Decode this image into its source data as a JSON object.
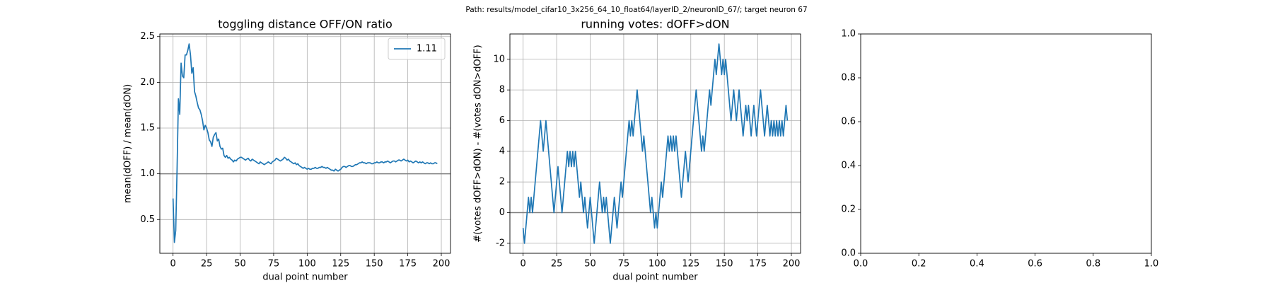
{
  "title": "Path: results/model_cifar10_3x256_64_10_float64/layerID_2/neuronID_67/; target neuron 67",
  "chart_data": [
    {
      "type": "line",
      "title": "toggling distance OFF/ON ratio",
      "xlabel": "dual point number",
      "ylabel": "mean(dOFF) / mean(dON)",
      "x": [
        0,
        1,
        2,
        3,
        4,
        5,
        6,
        7,
        8,
        9,
        10,
        11,
        12,
        13,
        14,
        15,
        16,
        17,
        18,
        19,
        20,
        21,
        22,
        23,
        24,
        25,
        26,
        27,
        28,
        29,
        30,
        31,
        32,
        33,
        34,
        35,
        36,
        37,
        38,
        39,
        40,
        41,
        42,
        43,
        44,
        45,
        46,
        47,
        48,
        49,
        50,
        51,
        52,
        53,
        54,
        55,
        56,
        57,
        58,
        59,
        60,
        61,
        62,
        63,
        64,
        65,
        66,
        67,
        68,
        69,
        70,
        71,
        72,
        73,
        74,
        75,
        76,
        77,
        78,
        79,
        80,
        81,
        82,
        83,
        84,
        85,
        86,
        87,
        88,
        89,
        90,
        91,
        92,
        93,
        94,
        95,
        96,
        97,
        98,
        99,
        100,
        101,
        102,
        103,
        104,
        105,
        106,
        107,
        108,
        109,
        110,
        111,
        112,
        113,
        114,
        115,
        116,
        117,
        118,
        119,
        120,
        121,
        122,
        123,
        124,
        125,
        126,
        127,
        128,
        129,
        130,
        131,
        132,
        133,
        134,
        135,
        136,
        137,
        138,
        139,
        140,
        141,
        142,
        143,
        144,
        145,
        146,
        147,
        148,
        149,
        150,
        151,
        152,
        153,
        154,
        155,
        156,
        157,
        158,
        159,
        160,
        161,
        162,
        163,
        164,
        165,
        166,
        167,
        168,
        169,
        170,
        171,
        172,
        173,
        174,
        175,
        176,
        177,
        178,
        179,
        180,
        181,
        182,
        183,
        184,
        185,
        186,
        187,
        188,
        189,
        190,
        191,
        192,
        193,
        194,
        195,
        196,
        197
      ],
      "series": [
        {
          "name": "1.11",
          "color": "#1f77b4",
          "values": [
            0.73,
            0.25,
            0.38,
            1.05,
            1.82,
            1.65,
            2.21,
            2.07,
            2.05,
            2.3,
            2.3,
            2.35,
            2.42,
            2.3,
            2.1,
            2.16,
            1.9,
            1.85,
            1.78,
            1.72,
            1.7,
            1.65,
            1.58,
            1.48,
            1.53,
            1.5,
            1.45,
            1.37,
            1.35,
            1.3,
            1.4,
            1.43,
            1.45,
            1.36,
            1.38,
            1.3,
            1.27,
            1.28,
            1.2,
            1.18,
            1.2,
            1.17,
            1.18,
            1.16,
            1.15,
            1.13,
            1.15,
            1.14,
            1.16,
            1.17,
            1.18,
            1.18,
            1.17,
            1.16,
            1.15,
            1.16,
            1.17,
            1.15,
            1.14,
            1.16,
            1.15,
            1.14,
            1.13,
            1.12,
            1.11,
            1.13,
            1.12,
            1.11,
            1.1,
            1.11,
            1.12,
            1.13,
            1.12,
            1.11,
            1.13,
            1.14,
            1.15,
            1.17,
            1.16,
            1.15,
            1.14,
            1.15,
            1.16,
            1.18,
            1.17,
            1.15,
            1.16,
            1.14,
            1.13,
            1.12,
            1.11,
            1.12,
            1.1,
            1.11,
            1.09,
            1.08,
            1.07,
            1.06,
            1.07,
            1.06,
            1.05,
            1.06,
            1.05,
            1.05,
            1.06,
            1.06,
            1.07,
            1.06,
            1.06,
            1.07,
            1.07,
            1.08,
            1.07,
            1.07,
            1.06,
            1.07,
            1.06,
            1.05,
            1.04,
            1.04,
            1.03,
            1.05,
            1.04,
            1.03,
            1.04,
            1.05,
            1.07,
            1.08,
            1.08,
            1.07,
            1.08,
            1.09,
            1.09,
            1.08,
            1.08,
            1.09,
            1.1,
            1.1,
            1.11,
            1.12,
            1.12,
            1.13,
            1.12,
            1.12,
            1.11,
            1.12,
            1.12,
            1.12,
            1.11,
            1.11,
            1.12,
            1.12,
            1.13,
            1.12,
            1.12,
            1.13,
            1.13,
            1.12,
            1.13,
            1.13,
            1.14,
            1.13,
            1.12,
            1.13,
            1.14,
            1.14,
            1.13,
            1.14,
            1.15,
            1.15,
            1.14,
            1.15,
            1.16,
            1.15,
            1.14,
            1.15,
            1.13,
            1.14,
            1.13,
            1.12,
            1.13,
            1.14,
            1.13,
            1.12,
            1.13,
            1.12,
            1.13,
            1.12,
            1.11,
            1.12,
            1.12,
            1.11,
            1.12,
            1.11,
            1.11,
            1.12,
            1.12,
            1.11
          ]
        }
      ],
      "hline": 1,
      "hline_color": "#808080",
      "xlim": [
        -9.85,
        206.85
      ],
      "xticks": [
        0,
        25,
        50,
        75,
        100,
        125,
        150,
        175,
        200
      ],
      "ylim": [
        0.131,
        2.529
      ],
      "yticks": [
        0.5,
        {
          "value": 1,
          "label": "1.0"
        },
        1.5,
        {
          "value": 2,
          "label": "2.0"
        },
        2.5
      ],
      "grid": true,
      "legend": "upper right"
    },
    {
      "type": "line",
      "title": "running votes: dOFF>dON",
      "xlabel": "dual point number",
      "ylabel": "#(votes dOFF>dON) - #(votes dON>dOFF)",
      "x": [
        0,
        1,
        2,
        3,
        4,
        5,
        6,
        7,
        8,
        9,
        10,
        11,
        12,
        13,
        14,
        15,
        16,
        17,
        18,
        19,
        20,
        21,
        22,
        23,
        24,
        25,
        26,
        27,
        28,
        29,
        30,
        31,
        32,
        33,
        34,
        35,
        36,
        37,
        38,
        39,
        40,
        41,
        42,
        43,
        44,
        45,
        46,
        47,
        48,
        49,
        50,
        51,
        52,
        53,
        54,
        55,
        56,
        57,
        58,
        59,
        60,
        61,
        62,
        63,
        64,
        65,
        66,
        67,
        68,
        69,
        70,
        71,
        72,
        73,
        74,
        75,
        76,
        77,
        78,
        79,
        80,
        81,
        82,
        83,
        84,
        85,
        86,
        87,
        88,
        89,
        90,
        91,
        92,
        93,
        94,
        95,
        96,
        97,
        98,
        99,
        100,
        101,
        102,
        103,
        104,
        105,
        106,
        107,
        108,
        109,
        110,
        111,
        112,
        113,
        114,
        115,
        116,
        117,
        118,
        119,
        120,
        121,
        122,
        123,
        124,
        125,
        126,
        127,
        128,
        129,
        130,
        131,
        132,
        133,
        134,
        135,
        136,
        137,
        138,
        139,
        140,
        141,
        142,
        143,
        144,
        145,
        146,
        147,
        148,
        149,
        150,
        151,
        152,
        153,
        154,
        155,
        156,
        157,
        158,
        159,
        160,
        161,
        162,
        163,
        164,
        165,
        166,
        167,
        168,
        169,
        170,
        171,
        172,
        173,
        174,
        175,
        176,
        177,
        178,
        179,
        180,
        181,
        182,
        183,
        184,
        185,
        186,
        187,
        188,
        189,
        190,
        191,
        192,
        193,
        194,
        195,
        196,
        197
      ],
      "series": [
        {
          "color": "#1f77b4",
          "values": [
            -1,
            -2,
            -1,
            0,
            1,
            0,
            1,
            0,
            1,
            2,
            3,
            4,
            5,
            6,
            5,
            4,
            5,
            6,
            5,
            4,
            3,
            2,
            1,
            0,
            1,
            2,
            3,
            2,
            1,
            0,
            1,
            2,
            3,
            4,
            3,
            4,
            3,
            4,
            3,
            4,
            3,
            2,
            1,
            2,
            1,
            0,
            1,
            0,
            -1,
            0,
            1,
            0,
            -1,
            -2,
            -1,
            0,
            1,
            2,
            1,
            0,
            1,
            0,
            1,
            0,
            -1,
            -2,
            -1,
            0,
            1,
            0,
            -1,
            0,
            1,
            2,
            1,
            2,
            3,
            4,
            5,
            6,
            5,
            6,
            5,
            6,
            7,
            8,
            7,
            6,
            5,
            4,
            5,
            4,
            3,
            2,
            1,
            0,
            1,
            0,
            -1,
            0,
            -1,
            0,
            1,
            2,
            1,
            2,
            3,
            4,
            5,
            4,
            5,
            4,
            5,
            4,
            5,
            4,
            3,
            2,
            1,
            2,
            3,
            4,
            3,
            2,
            3,
            4,
            5,
            6,
            7,
            8,
            7,
            6,
            5,
            4,
            5,
            4,
            5,
            6,
            7,
            8,
            7,
            8,
            9,
            10,
            9,
            10,
            11,
            10,
            9,
            10,
            9,
            10,
            9,
            8,
            7,
            6,
            7,
            8,
            7,
            6,
            7,
            8,
            7,
            6,
            5,
            6,
            7,
            6,
            7,
            6,
            5,
            6,
            7,
            6,
            5,
            6,
            7,
            8,
            7,
            6,
            5,
            6,
            7,
            6,
            5,
            6,
            5,
            6,
            5,
            6,
            5,
            6,
            5,
            6,
            5,
            6,
            7,
            6
          ]
        }
      ],
      "hline": 0,
      "hline_color": "#808080",
      "xlim": [
        -9.85,
        206.85
      ],
      "xticks": [
        0,
        25,
        50,
        75,
        100,
        125,
        150,
        175,
        200
      ],
      "ylim": [
        -2.65,
        11.65
      ],
      "yticks": [
        -2,
        0,
        2,
        4,
        6,
        8,
        10
      ],
      "grid": true
    },
    {
      "type": "empty",
      "xlim": [
        0,
        1
      ],
      "xticks": [
        {
          "value": 0,
          "label": "0.0"
        },
        0.2,
        0.4,
        0.6,
        0.8,
        {
          "value": 1,
          "label": "1.0"
        }
      ],
      "ylim": [
        0,
        1
      ],
      "yticks": [
        {
          "value": 0,
          "label": "0.0"
        },
        0.2,
        0.4,
        0.6,
        0.8,
        {
          "value": 1,
          "label": "1.0"
        }
      ],
      "grid": false
    }
  ]
}
